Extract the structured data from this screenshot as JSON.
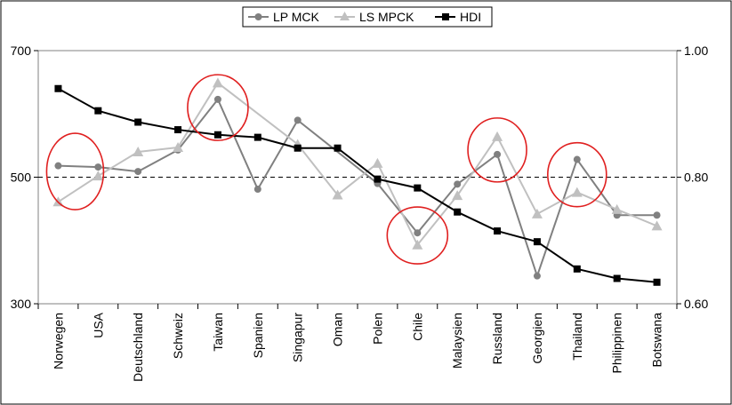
{
  "chart_data": {
    "type": "line",
    "categories": [
      "Norwegen",
      "USA",
      "Deutschland",
      "Schweiz",
      "Taiwan",
      "Spanien",
      "Singapur",
      "Oman",
      "Polen",
      "Chile",
      "Malaysien",
      "Russland",
      "Georgien",
      "Thailand",
      "Philippinen",
      "Botswana"
    ],
    "y_left": {
      "ticks": [
        "300",
        "500",
        "700"
      ],
      "ylim": [
        300,
        700
      ]
    },
    "y_right": {
      "ticks": [
        "0.60",
        "0.80",
        "1.00"
      ],
      "ylim": [
        0.6,
        1.0
      ]
    },
    "reference_line": {
      "axis": "left",
      "value": 500,
      "style": "dashed"
    },
    "legend_position": "top-center",
    "grid": false,
    "series": [
      {
        "name": "LP MCK",
        "axis": "left",
        "color": "#808080",
        "marker": "circle",
        "values": [
          518,
          516,
          509,
          543,
          623,
          481,
          590,
          null,
          490,
          412,
          489,
          536,
          344,
          528,
          440,
          440
        ]
      },
      {
        "name": "LS MPCK",
        "axis": "left",
        "color": "#c0c0c0",
        "marker": "triangle",
        "values": [
          461,
          502,
          540,
          547,
          649,
          null,
          552,
          472,
          522,
          393,
          471,
          564,
          442,
          476,
          449,
          423
        ]
      },
      {
        "name": "HDI",
        "axis": "right",
        "color": "#000000",
        "marker": "square",
        "values": [
          0.94,
          0.905,
          0.887,
          0.875,
          0.867,
          0.863,
          0.846,
          0.846,
          0.797,
          0.783,
          0.745,
          0.715,
          0.698,
          0.655,
          0.64,
          0.634
        ]
      }
    ],
    "highlight_colors": {
      "ellipse": "#e02020"
    }
  }
}
